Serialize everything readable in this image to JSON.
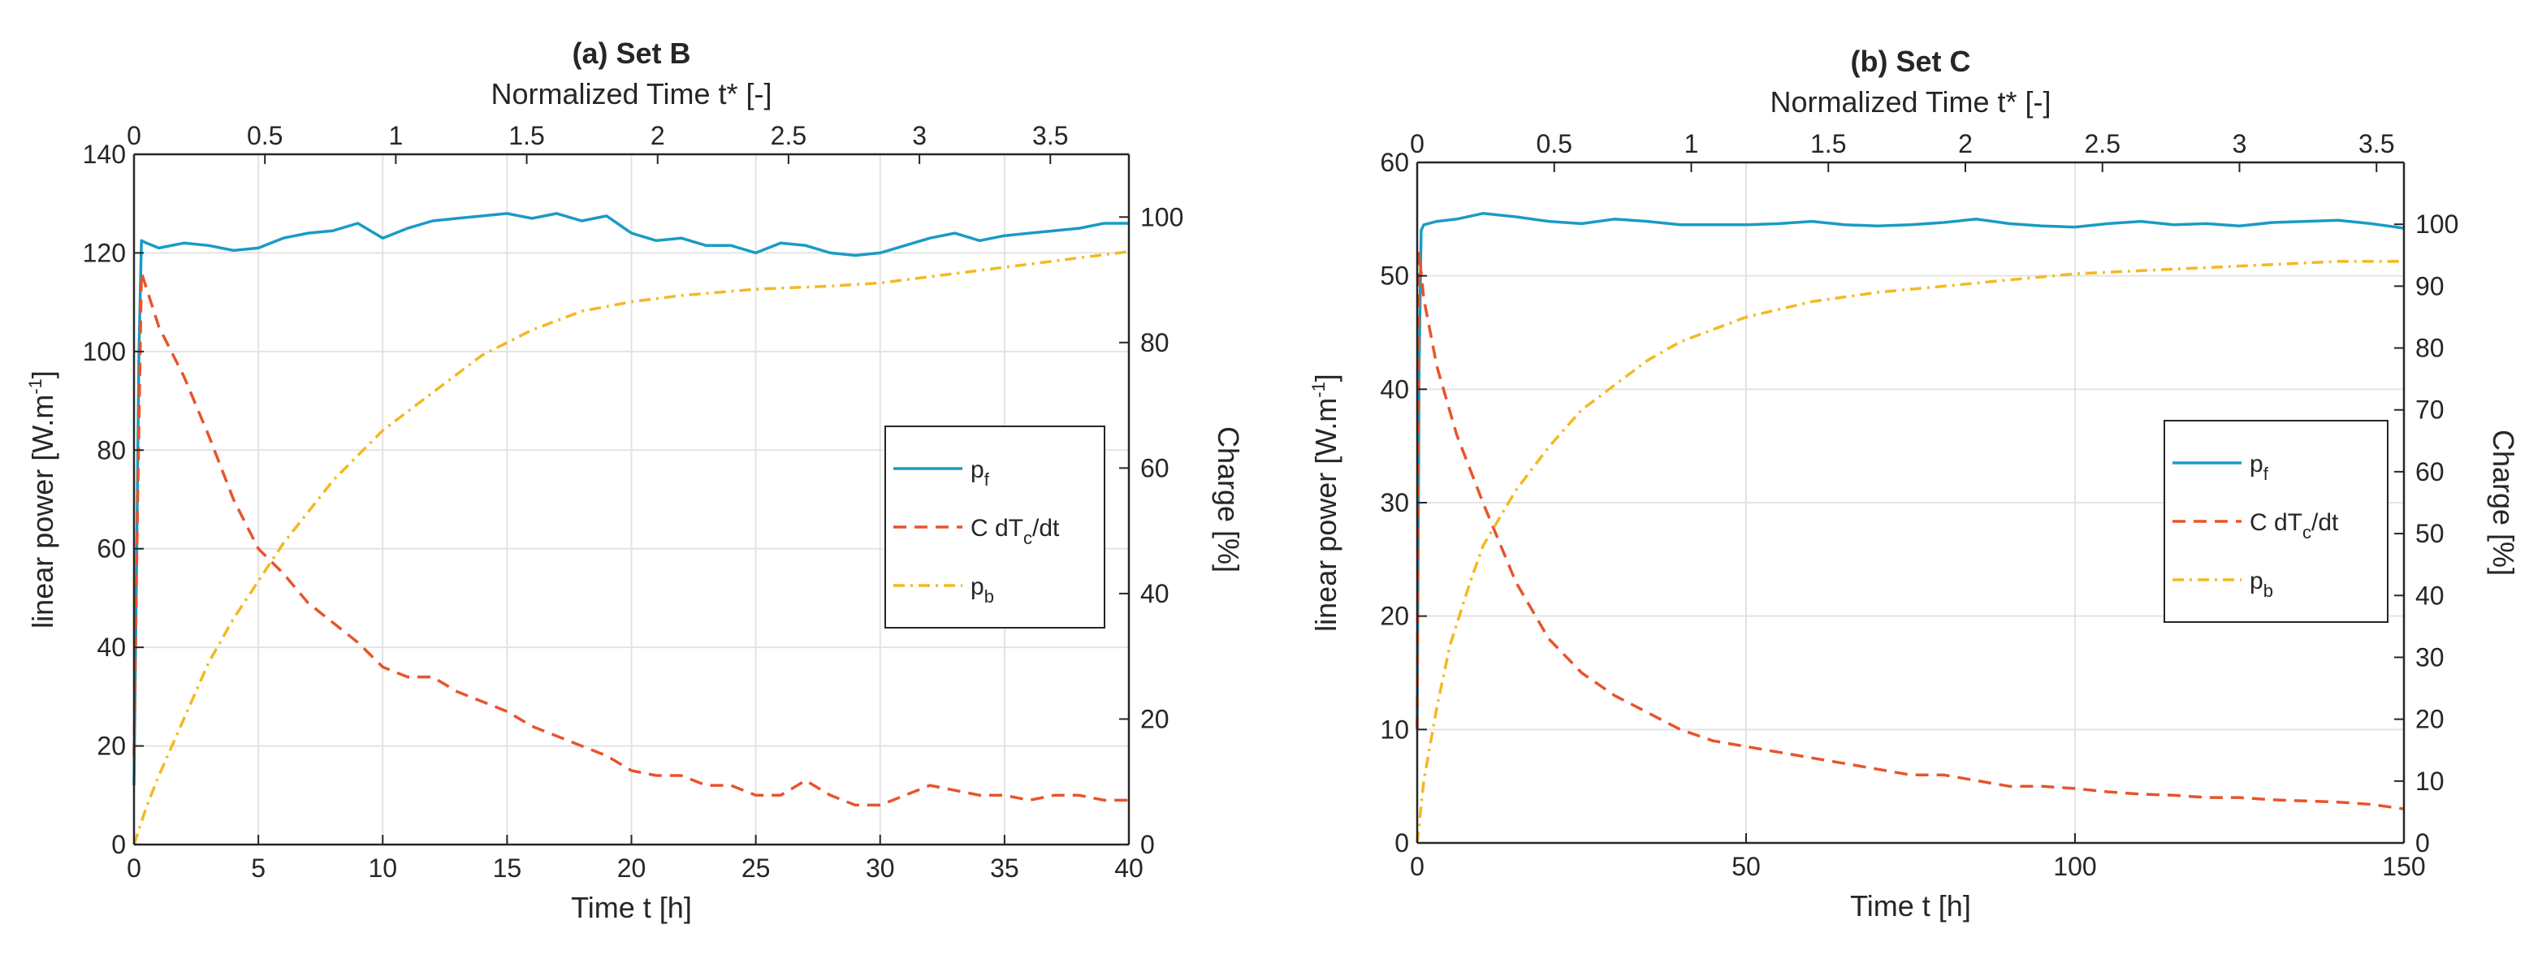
{
  "chart_data": [
    {
      "type": "line",
      "title": "(a) Set B",
      "xlabel": "Time t [h]",
      "x2label": "Normalized Time t* [-]",
      "ylabel": "linear power [W.m",
      "ylabel_sup": "-1",
      "ylabel_end": "]",
      "y2label": "Charge [%]",
      "xlim": [
        0,
        40
      ],
      "ylim": [
        0,
        140
      ],
      "x2lim": [
        0,
        3.8
      ],
      "y2lim": [
        0,
        110
      ],
      "xticks": [
        "0",
        "5",
        "10",
        "15",
        "20",
        "25",
        "30",
        "35",
        "40"
      ],
      "yticks": [
        "0",
        "20",
        "40",
        "60",
        "80",
        "100",
        "120",
        "140"
      ],
      "x2ticks": [
        "0",
        "0.5",
        "1",
        "1.5",
        "2",
        "2.5",
        "3",
        "3.5"
      ],
      "y2ticks": [
        "0",
        "20",
        "40",
        "60",
        "80",
        "100"
      ],
      "grid": true,
      "legend_position": "right",
      "series": [
        {
          "name": "p",
          "name_sub": "f",
          "axis": "left",
          "color": "#1a9bc5",
          "style": "solid",
          "x": [
            0,
            0.1,
            0.2,
            0.3,
            0.5,
            1,
            2,
            3,
            4,
            5,
            6,
            7,
            8,
            9,
            10,
            11,
            12,
            13,
            14,
            15,
            16,
            17,
            18,
            19,
            20,
            21,
            22,
            23,
            24,
            25,
            26,
            27,
            28,
            29,
            30,
            31,
            32,
            33,
            34,
            35,
            36,
            37,
            38,
            39,
            40
          ],
          "y": [
            12,
            56,
            100,
            122.5,
            122,
            121,
            122,
            121.5,
            120.5,
            121,
            123,
            124,
            124.5,
            126,
            123,
            125,
            126.5,
            127,
            127.5,
            128,
            127,
            128,
            126.5,
            127.5,
            124,
            122.5,
            123,
            121.5,
            121.5,
            120,
            122,
            121.5,
            120,
            119.5,
            120,
            121.5,
            123,
            124,
            122.5,
            123.5,
            124,
            124.5,
            125,
            126,
            126
          ]
        },
        {
          "name": "C dT",
          "name_sub": "c",
          "name_end": "/dt",
          "axis": "left",
          "color": "#e8542a",
          "style": "dashed",
          "x": [
            0,
            0.1,
            0.3,
            1,
            2,
            3,
            4,
            5,
            6,
            7,
            8,
            9,
            10,
            11,
            12,
            13,
            14,
            15,
            16,
            17,
            18,
            19,
            20,
            21,
            22,
            23,
            24,
            25,
            26,
            27,
            28,
            29,
            30,
            31,
            32,
            33,
            34,
            35,
            36,
            37,
            38,
            39,
            40
          ],
          "y": [
            18,
            55,
            116,
            105,
            95,
            83,
            70,
            60,
            55,
            49,
            45,
            41,
            36,
            34,
            34,
            31,
            29,
            27,
            24,
            22,
            20,
            18,
            15,
            14,
            14,
            12,
            12,
            10,
            10,
            13,
            10,
            8,
            8,
            10,
            12,
            11,
            10,
            10,
            9,
            10,
            10,
            9,
            9
          ]
        },
        {
          "name": "p",
          "name_sub": "b",
          "axis": "right",
          "color": "#f4b920",
          "style": "dashdot",
          "x": [
            0,
            0.5,
            1,
            2,
            3,
            4,
            5,
            6,
            7,
            8,
            9,
            10,
            12,
            14,
            16,
            18,
            20,
            22,
            25,
            28,
            30,
            32,
            35,
            38,
            40
          ],
          "y": [
            0,
            6,
            11,
            20,
            29,
            36,
            42,
            48,
            53,
            58,
            62,
            66,
            72,
            78,
            82,
            85,
            86.5,
            87.5,
            88.5,
            89,
            89.5,
            90.5,
            92,
            93.5,
            94.5
          ]
        }
      ]
    },
    {
      "type": "line",
      "title": "(b) Set C",
      "xlabel": "Time t [h]",
      "x2label": "Normalized Time t* [-]",
      "ylabel": "linear power [W.m",
      "ylabel_sup": "-1",
      "ylabel_end": "]",
      "y2label": "Charge [%]",
      "xlim": [
        0,
        150
      ],
      "ylim": [
        0,
        60
      ],
      "x2lim": [
        0,
        3.6
      ],
      "y2lim": [
        0,
        110
      ],
      "xticks": [
        "0",
        "50",
        "100",
        "150"
      ],
      "yticks": [
        "0",
        "10",
        "20",
        "30",
        "40",
        "50",
        "60"
      ],
      "x2ticks": [
        "0",
        "0.5",
        "1",
        "1.5",
        "2",
        "2.5",
        "3",
        "3.5"
      ],
      "y2ticks": [
        "0",
        "10",
        "20",
        "30",
        "40",
        "50",
        "60",
        "70",
        "80",
        "90",
        "100"
      ],
      "grid": true,
      "legend_position": "right",
      "series": [
        {
          "name": "p",
          "name_sub": "f",
          "axis": "left",
          "color": "#1a9bc5",
          "style": "solid",
          "x": [
            0,
            0.3,
            0.6,
            1,
            3,
            6,
            10,
            15,
            20,
            25,
            30,
            35,
            40,
            45,
            50,
            55,
            60,
            65,
            70,
            75,
            80,
            85,
            90,
            95,
            100,
            105,
            110,
            115,
            120,
            125,
            130,
            135,
            140,
            145,
            150
          ],
          "y": [
            10,
            42,
            54,
            54.5,
            54.8,
            55,
            55.5,
            55.2,
            54.8,
            54.6,
            55,
            54.8,
            54.5,
            54.5,
            54.5,
            54.6,
            54.8,
            54.5,
            54.4,
            54.5,
            54.7,
            55,
            54.6,
            54.4,
            54.3,
            54.6,
            54.8,
            54.5,
            54.6,
            54.4,
            54.7,
            54.8,
            54.9,
            54.6,
            54.2
          ]
        },
        {
          "name": "C dT",
          "name_sub": "c",
          "name_end": "/dt",
          "axis": "left",
          "color": "#e8542a",
          "style": "dashed",
          "x": [
            0,
            0.3,
            1,
            3,
            6,
            10,
            15,
            20,
            25,
            30,
            35,
            40,
            45,
            50,
            55,
            60,
            65,
            70,
            75,
            80,
            85,
            90,
            95,
            100,
            105,
            110,
            115,
            120,
            125,
            130,
            135,
            140,
            145,
            150
          ],
          "y": [
            10,
            52,
            48,
            42,
            36,
            30,
            23,
            18,
            15,
            13,
            11.5,
            10,
            9,
            8.5,
            8,
            7.5,
            7,
            6.5,
            6,
            6,
            5.5,
            5,
            5,
            4.8,
            4.5,
            4.3,
            4.2,
            4,
            4,
            3.8,
            3.7,
            3.6,
            3.4,
            3
          ]
        },
        {
          "name": "p",
          "name_sub": "b",
          "axis": "right",
          "color": "#f4b920",
          "style": "dashdot",
          "x": [
            0,
            1,
            3,
            5,
            8,
            10,
            15,
            20,
            25,
            30,
            35,
            40,
            50,
            60,
            70,
            80,
            90,
            100,
            110,
            120,
            130,
            140,
            150
          ],
          "y": [
            0,
            10,
            22,
            32,
            42,
            48,
            57,
            64,
            70,
            74,
            78,
            81,
            85,
            87.5,
            89,
            90,
            91,
            92,
            92.5,
            93,
            93.5,
            94,
            94
          ]
        }
      ]
    }
  ]
}
